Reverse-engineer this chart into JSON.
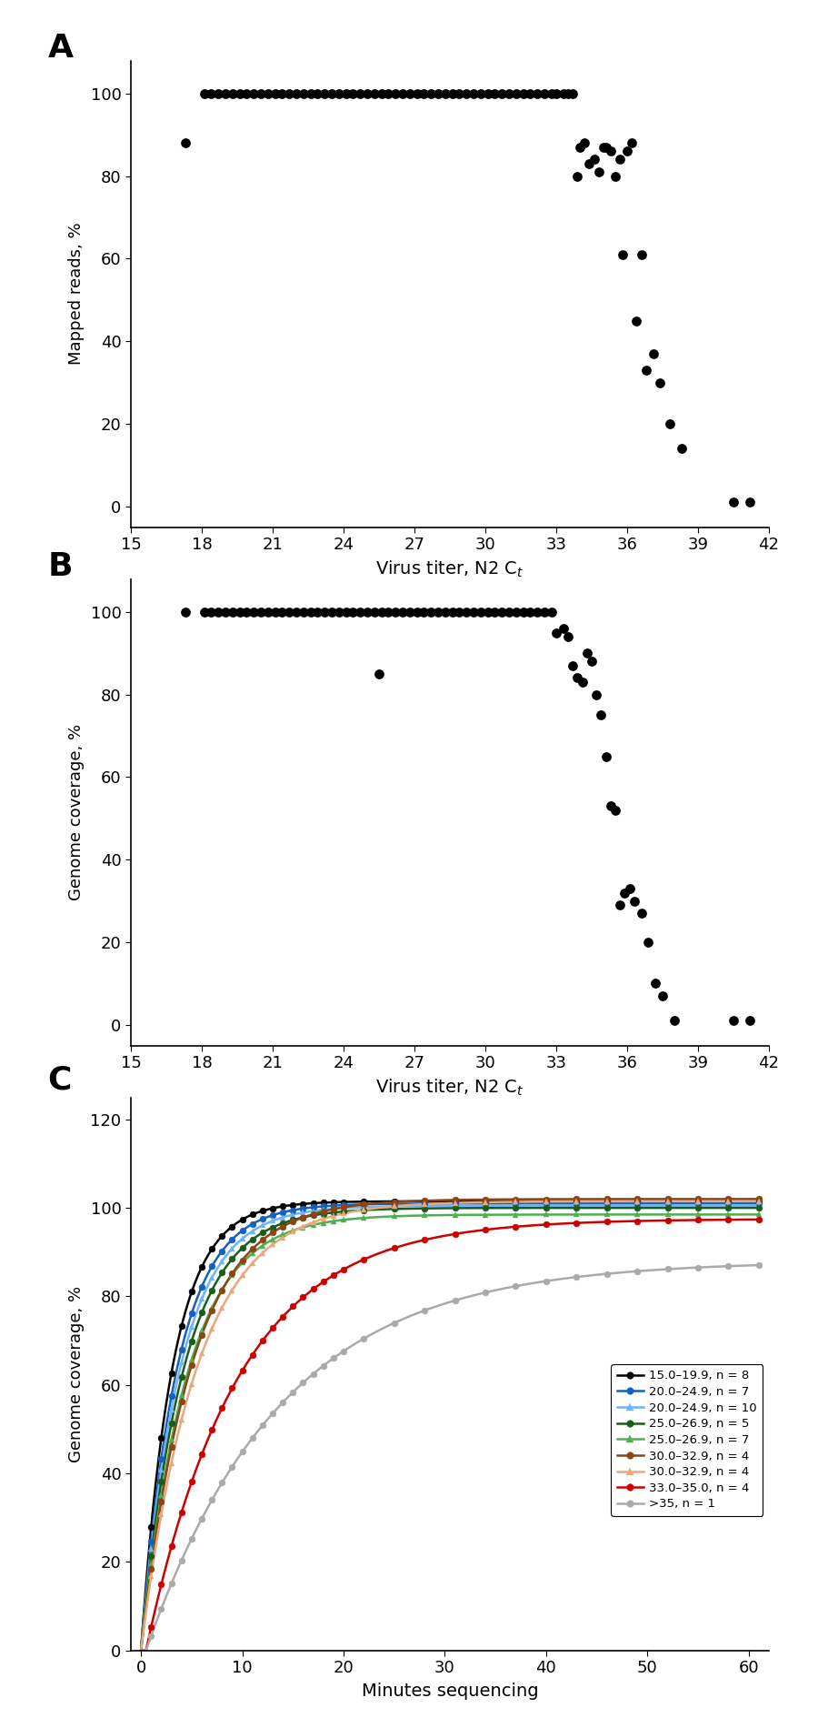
{
  "panel_A": {
    "label": "A",
    "xlabel": "Virus titer, N2 Cₜ",
    "ylabel": "Mapped reads, %",
    "xlim": [
      15,
      42
    ],
    "ylim": [
      -5,
      108
    ],
    "xticks": [
      15,
      18,
      21,
      24,
      27,
      30,
      33,
      36,
      39,
      42
    ],
    "yticks": [
      0,
      20,
      40,
      60,
      80,
      100
    ],
    "scatter_x": [
      17.3,
      18.1,
      18.4,
      18.7,
      19.0,
      19.3,
      19.6,
      19.9,
      20.2,
      20.5,
      20.8,
      21.1,
      21.4,
      21.7,
      22.0,
      22.3,
      22.6,
      22.9,
      23.2,
      23.5,
      23.8,
      24.1,
      24.4,
      24.7,
      25.0,
      25.3,
      25.6,
      25.9,
      26.2,
      26.5,
      26.8,
      27.1,
      27.4,
      27.7,
      28.0,
      28.3,
      28.6,
      28.9,
      29.2,
      29.5,
      29.8,
      30.1,
      30.4,
      30.7,
      31.0,
      31.3,
      31.6,
      31.9,
      32.2,
      32.5,
      32.8,
      33.0,
      33.3,
      33.5,
      33.7,
      33.9,
      34.0,
      34.2,
      34.4,
      34.6,
      34.8,
      35.0,
      35.1,
      35.3,
      35.5,
      35.7,
      35.8,
      36.0,
      36.2,
      36.4,
      36.6,
      36.8,
      37.1,
      37.4,
      37.8,
      38.3,
      40.5,
      41.2
    ],
    "scatter_y": [
      88,
      100,
      100,
      100,
      100,
      100,
      100,
      100,
      100,
      100,
      100,
      100,
      100,
      100,
      100,
      100,
      100,
      100,
      100,
      100,
      100,
      100,
      100,
      100,
      100,
      100,
      100,
      100,
      100,
      100,
      100,
      100,
      100,
      100,
      100,
      100,
      100,
      100,
      100,
      100,
      100,
      100,
      100,
      100,
      100,
      100,
      100,
      100,
      100,
      100,
      100,
      100,
      100,
      100,
      100,
      80,
      87,
      88,
      83,
      84,
      81,
      87,
      87,
      86,
      80,
      84,
      61,
      86,
      88,
      45,
      61,
      33,
      37,
      30,
      20,
      14,
      1,
      1
    ]
  },
  "panel_B": {
    "label": "B",
    "xlabel": "Virus titer, N2 Cₜ",
    "ylabel": "Genome coverage, %",
    "xlim": [
      15,
      42
    ],
    "ylim": [
      -5,
      108
    ],
    "xticks": [
      15,
      18,
      21,
      24,
      27,
      30,
      33,
      36,
      39,
      42
    ],
    "yticks": [
      0,
      20,
      40,
      60,
      80,
      100
    ],
    "scatter_x": [
      17.3,
      18.1,
      18.4,
      18.7,
      19.0,
      19.3,
      19.6,
      19.9,
      20.2,
      20.5,
      20.8,
      21.1,
      21.4,
      21.7,
      22.0,
      22.3,
      22.6,
      22.9,
      23.2,
      23.5,
      23.8,
      24.1,
      24.4,
      24.7,
      25.0,
      25.3,
      25.6,
      25.9,
      26.2,
      26.5,
      26.8,
      27.1,
      27.4,
      27.7,
      28.0,
      28.3,
      28.6,
      28.9,
      29.2,
      29.5,
      29.8,
      30.1,
      30.4,
      30.7,
      31.0,
      31.3,
      31.6,
      31.9,
      32.2,
      32.5,
      32.8,
      33.0,
      33.3,
      33.5,
      33.7,
      33.9,
      34.1,
      34.3,
      34.5,
      34.7,
      34.9,
      35.1,
      35.3,
      35.5,
      35.7,
      35.9,
      36.1,
      36.3,
      36.6,
      36.9,
      37.2,
      37.5,
      38.0,
      40.5,
      41.2,
      25.5
    ],
    "scatter_y": [
      100,
      100,
      100,
      100,
      100,
      100,
      100,
      100,
      100,
      100,
      100,
      100,
      100,
      100,
      100,
      100,
      100,
      100,
      100,
      100,
      100,
      100,
      100,
      100,
      100,
      100,
      100,
      100,
      100,
      100,
      100,
      100,
      100,
      100,
      100,
      100,
      100,
      100,
      100,
      100,
      100,
      100,
      100,
      100,
      100,
      100,
      100,
      100,
      100,
      100,
      100,
      95,
      96,
      94,
      87,
      84,
      83,
      90,
      88,
      80,
      75,
      65,
      53,
      52,
      29,
      32,
      33,
      30,
      27,
      20,
      10,
      7,
      1,
      1,
      1,
      85
    ]
  },
  "panel_C": {
    "label": "C",
    "xlabel": "Minutes sequencing",
    "ylabel": "Genome coverage, %",
    "xlim": [
      -1,
      62
    ],
    "ylim": [
      0,
      125
    ],
    "xticks": [
      0,
      10,
      20,
      30,
      40,
      50,
      60
    ],
    "yticks": [
      0,
      20,
      40,
      60,
      80,
      100,
      120
    ],
    "series": [
      {
        "label": "15.0–19.9, n = 8",
        "color": "#000000",
        "marker": "o",
        "max_val": 101.5,
        "rate": 0.32,
        "t0": 0.0
      },
      {
        "label": "20.0–24.9, n = 7",
        "color": "#1560bd",
        "marker": "o",
        "max_val": 101.0,
        "rate": 0.28,
        "t0": 0.0
      },
      {
        "label": "20.0–24.9, n = 10",
        "color": "#6eb4f7",
        "marker": "^",
        "max_val": 100.5,
        "rate": 0.26,
        "t0": 0.0
      },
      {
        "label": "25.0–26.9, n = 5",
        "color": "#1a5c1a",
        "marker": "o",
        "max_val": 100.0,
        "rate": 0.24,
        "t0": 0.0
      },
      {
        "label": "25.0–26.9, n = 7",
        "color": "#4caf50",
        "marker": "^",
        "max_val": 98.5,
        "rate": 0.22,
        "t0": 0.0
      },
      {
        "label": "30.0–32.9, n = 4",
        "color": "#8b4513",
        "marker": "o",
        "max_val": 102.0,
        "rate": 0.2,
        "t0": 0.0
      },
      {
        "label": "30.0–32.9, n = 4",
        "color": "#e8a87c",
        "marker": "^",
        "max_val": 101.5,
        "rate": 0.18,
        "t0": 0.0
      },
      {
        "label": "33.0–35.0, n = 4",
        "color": "#cc0000",
        "marker": "o",
        "max_val": 97.5,
        "rate": 0.11,
        "t0": 0.5
      },
      {
        "label": ">35, n = 1",
        "color": "#aaaaaa",
        "marker": "o",
        "max_val": 88.0,
        "rate": 0.075,
        "t0": 0.5
      }
    ]
  }
}
